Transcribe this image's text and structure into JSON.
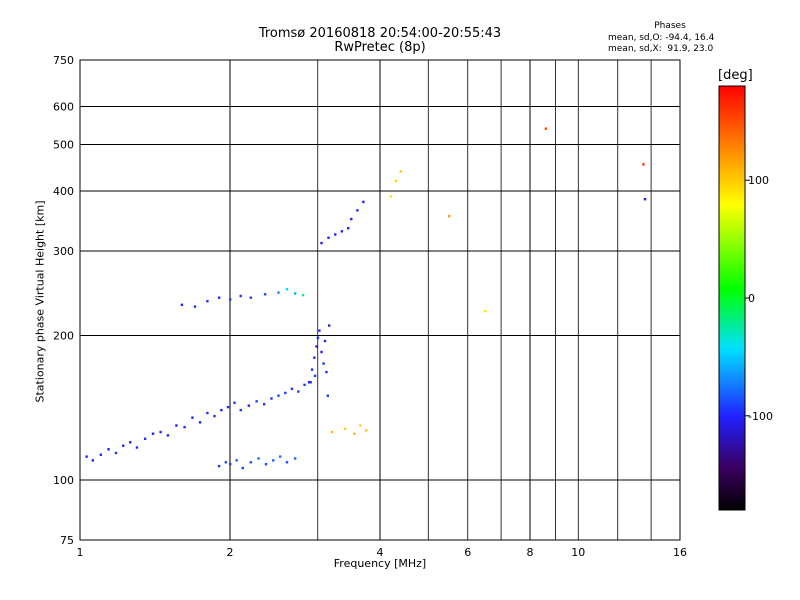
{
  "header": {
    "title": "Tromsø 20160818 20:54:00-20:55:43",
    "subtitle": "RwPretec (8p)"
  },
  "phases": {
    "title": "Phases",
    "o_line": "mean, sd,O: -94.4, 16.4",
    "x_line": "mean, sd,X:  91.9, 23.0"
  },
  "colorbar": {
    "unit": "[deg]",
    "ticks": [
      {
        "value": 100,
        "label": "100"
      },
      {
        "value": 0,
        "label": "0"
      },
      {
        "value": -100,
        "label": "-100"
      }
    ],
    "range": [
      -180,
      180
    ]
  },
  "chart_data": {
    "type": "scatter",
    "xlabel": "Frequency [MHz]",
    "ylabel": "Stationary phase Virtual Height [km]",
    "xscale": "log",
    "yscale": "log",
    "xlim": [
      1,
      16
    ],
    "ylim": [
      75,
      750
    ],
    "xticks": [
      {
        "value": 1,
        "label": "1"
      },
      {
        "value": 2,
        "label": "2"
      },
      {
        "value": 4,
        "label": "4"
      },
      {
        "value": 6,
        "label": "6"
      },
      {
        "value": 8,
        "label": "8"
      },
      {
        "value": 10,
        "label": "10"
      },
      {
        "value": 16,
        "label": "16"
      }
    ],
    "yticks": [
      {
        "value": 75,
        "label": "75"
      },
      {
        "value": 100,
        "label": "100"
      },
      {
        "value": 200,
        "label": "200"
      },
      {
        "value": 300,
        "label": "300"
      },
      {
        "value": 400,
        "label": "400"
      },
      {
        "value": 500,
        "label": "500"
      },
      {
        "value": 600,
        "label": "600"
      },
      {
        "value": 750,
        "label": "750"
      }
    ],
    "major_grid_x": [
      2,
      4,
      8
    ],
    "major_grid_y": [
      100,
      200,
      300,
      400,
      500,
      600
    ],
    "minor_grid_x": [
      3,
      5,
      6,
      7,
      9,
      10,
      12,
      14
    ],
    "minor_grid_y": [],
    "grid": true,
    "series": [
      {
        "x": [
          1.03,
          1.06,
          1.1,
          1.14,
          1.18,
          1.22,
          1.26,
          1.3,
          1.35,
          1.4,
          1.45,
          1.5,
          1.56,
          1.62,
          1.68,
          1.74,
          1.8,
          1.86,
          1.92,
          1.98,
          2.04,
          2.1,
          2.18,
          2.26,
          2.34,
          2.42,
          2.5,
          2.58,
          2.66,
          2.74,
          2.82,
          2.9,
          2.96
        ],
        "y": [
          112,
          110,
          113,
          116,
          114,
          118,
          120,
          117,
          122,
          125,
          126,
          124,
          130,
          129,
          135,
          132,
          138,
          136,
          140,
          142,
          145,
          140,
          143,
          146,
          144,
          148,
          150,
          152,
          155,
          153,
          158,
          160,
          165
        ],
        "phase": [
          -100,
          -102,
          -98,
          -105,
          -95,
          -100,
          -97,
          -103,
          -96,
          -100,
          -98,
          -102,
          -99,
          -95,
          -101,
          -100,
          -97,
          -94,
          -99,
          -96,
          -92,
          -95,
          -98,
          -90,
          -94,
          -96,
          -88,
          -92,
          -95,
          -90,
          -93,
          -97,
          -91
        ]
      },
      {
        "x": [
          1.9,
          1.96,
          2.0,
          2.06,
          2.12,
          2.2,
          2.28,
          2.36,
          2.44,
          2.52,
          2.6,
          2.7
        ],
        "y": [
          107,
          109,
          108,
          110,
          106,
          109,
          111,
          108,
          110,
          112,
          109,
          111
        ],
        "phase": [
          -95,
          -88,
          -92,
          -80,
          -90,
          -85,
          -78,
          -88,
          -82,
          -75,
          -86,
          -80
        ]
      },
      {
        "x": [
          1.6,
          1.7,
          1.8,
          1.9,
          2.0,
          2.1,
          2.2,
          2.35,
          2.5,
          2.6,
          2.7,
          2.8
        ],
        "y": [
          232,
          230,
          236,
          240,
          238,
          242,
          240,
          244,
          246,
          250,
          245,
          243
        ],
        "phase": [
          -100,
          -97,
          -95,
          -98,
          -92,
          -96,
          -90,
          -88,
          -70,
          -40,
          -60,
          -30
        ]
      },
      {
        "x": [
          2.88,
          2.92,
          2.95,
          2.98,
          3.0,
          3.02,
          3.05,
          3.08,
          3.1,
          3.12,
          3.14,
          3.16
        ],
        "y": [
          160,
          170,
          180,
          190,
          198,
          205,
          185,
          175,
          195,
          168,
          150,
          210
        ],
        "phase": [
          -100,
          -97,
          -95,
          -102,
          -98,
          -96,
          -100,
          -94,
          -99,
          -97,
          -95,
          -101
        ]
      },
      {
        "x": [
          3.05,
          3.15,
          3.25,
          3.35,
          3.45,
          3.5,
          3.6,
          3.7
        ],
        "y": [
          312,
          320,
          325,
          330,
          335,
          350,
          365,
          380
        ],
        "phase": [
          -105,
          -100,
          -102,
          -98,
          -100,
          -103,
          -99,
          -101
        ]
      },
      {
        "x": [
          3.2,
          3.4,
          3.55,
          3.65,
          3.75
        ],
        "y": [
          126,
          128,
          125,
          130,
          127
        ],
        "phase": [
          105,
          100,
          110,
          95,
          102
        ]
      },
      {
        "x": [
          4.2,
          4.3,
          4.4,
          5.5,
          6.5,
          8.6,
          13.5,
          13.6
        ],
        "y": [
          390,
          420,
          440,
          355,
          225,
          540,
          455,
          385
        ],
        "phase": [
          90,
          95,
          100,
          120,
          90,
          150,
          160,
          -110
        ]
      }
    ]
  }
}
